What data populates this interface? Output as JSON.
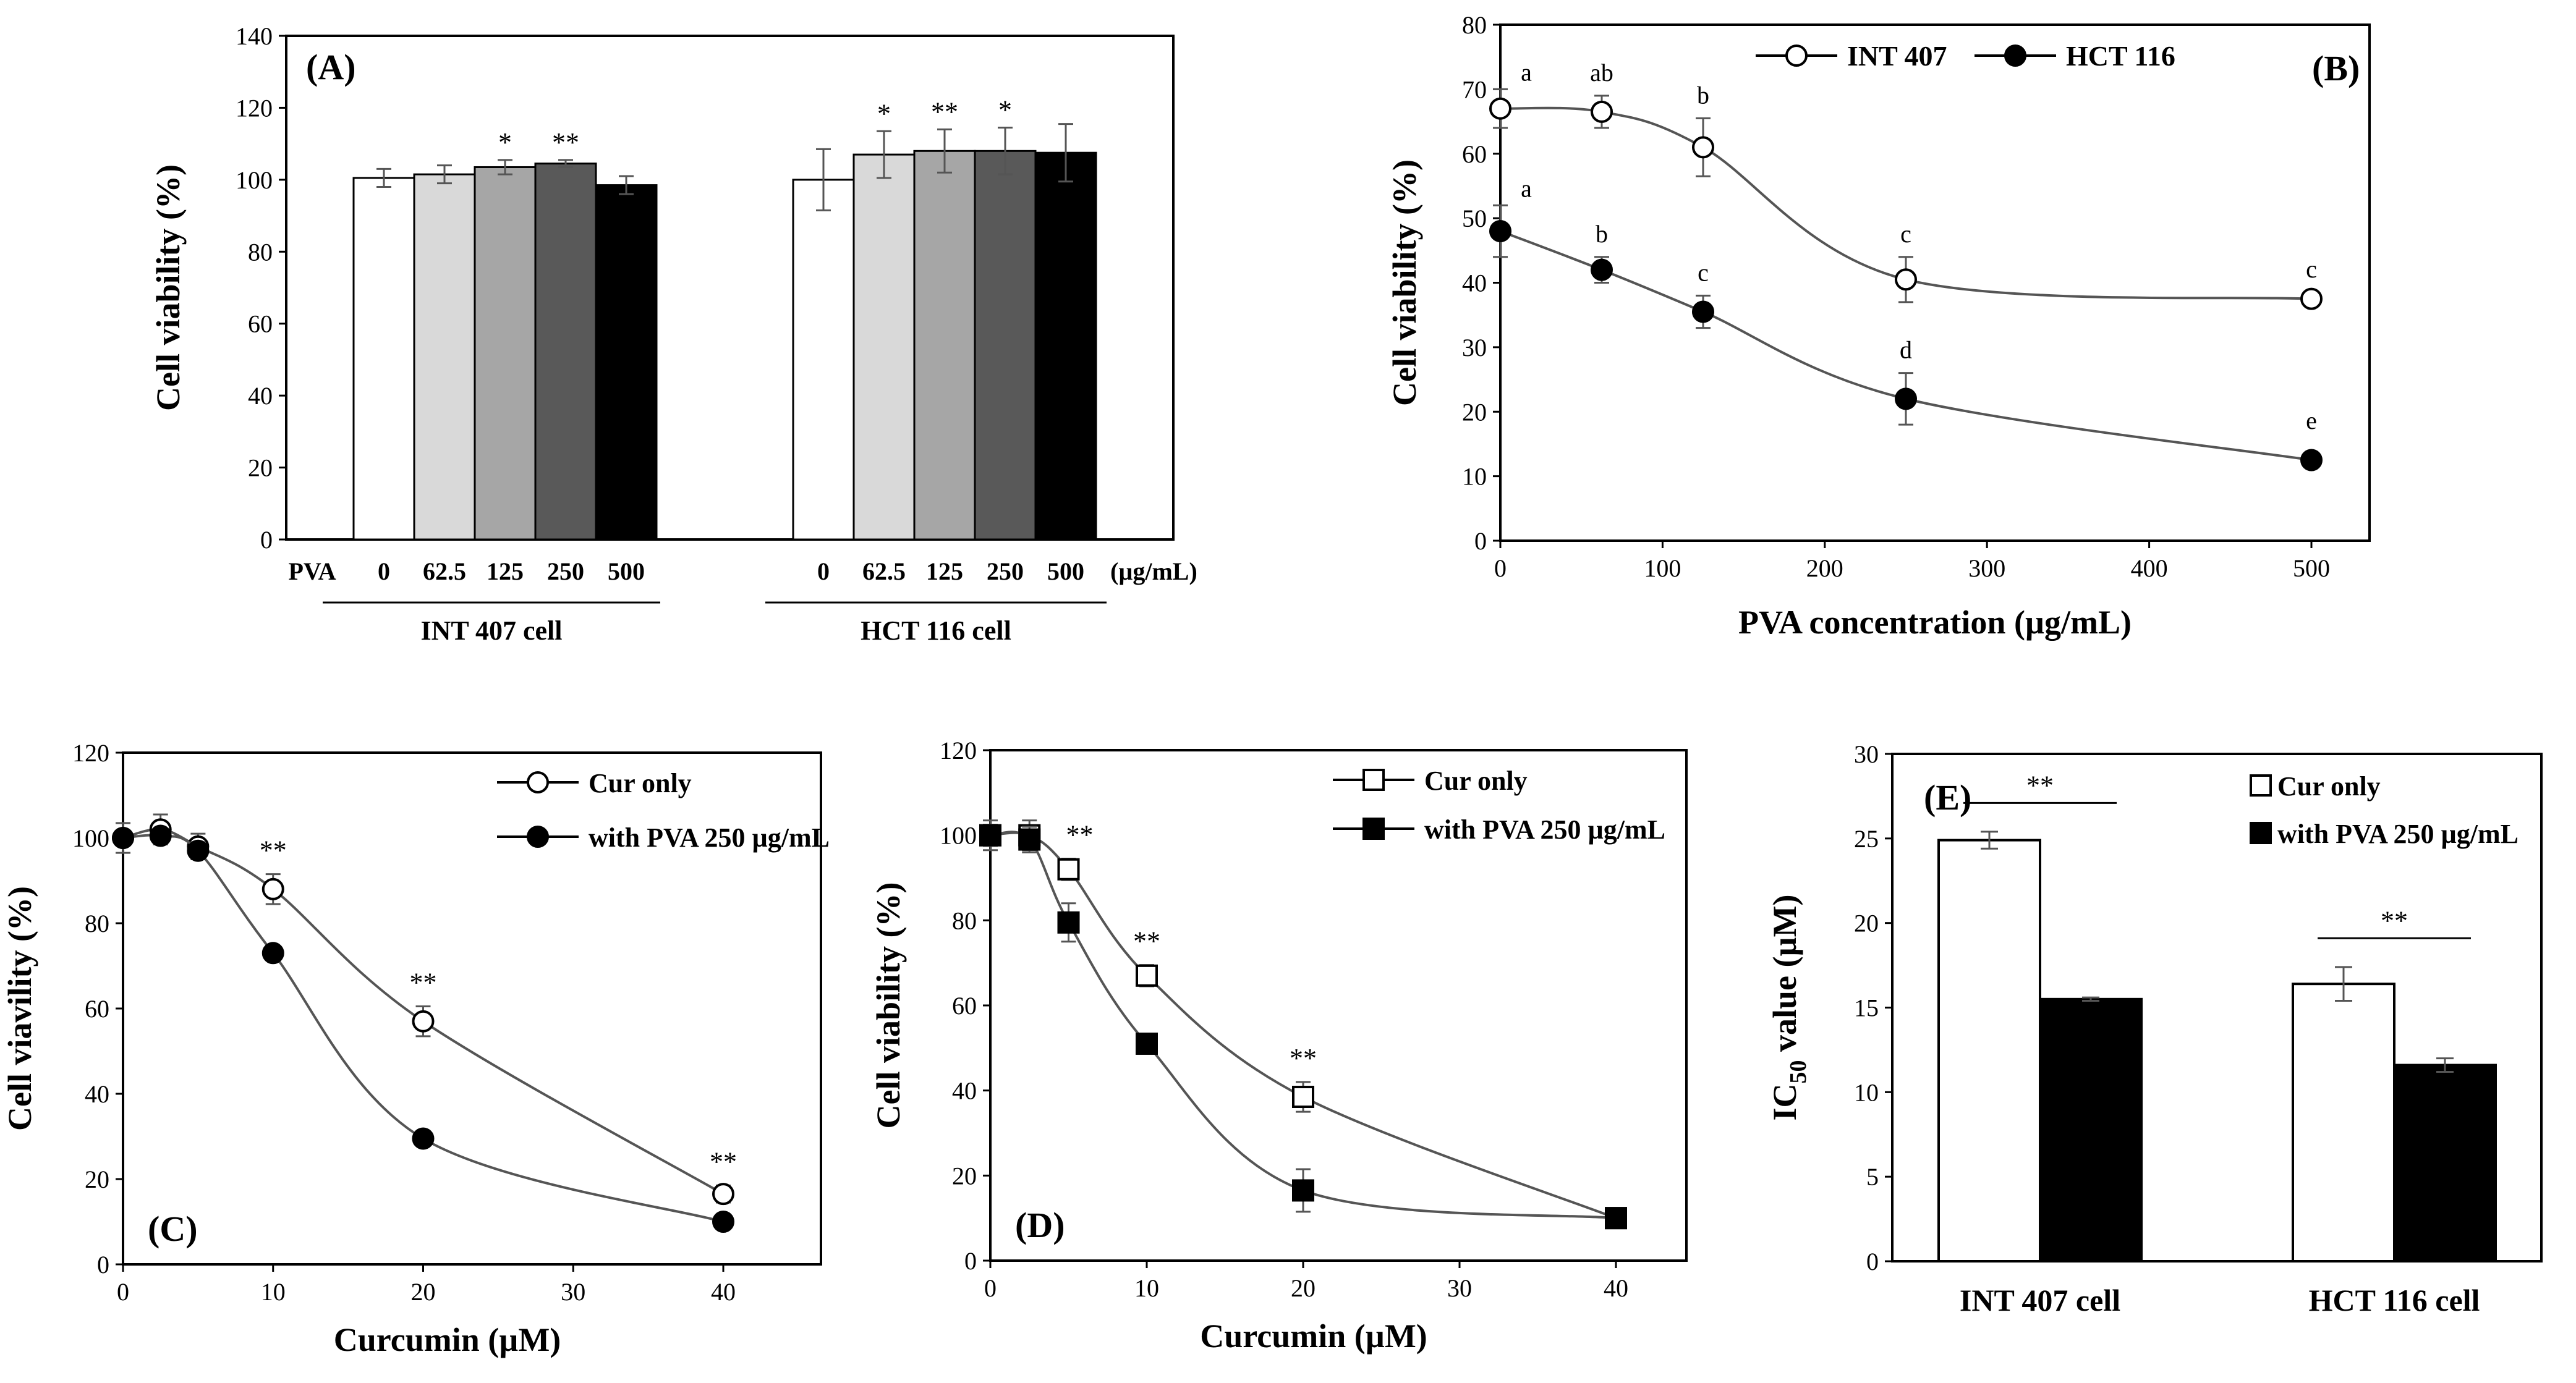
{
  "chart_data": [
    {
      "id": "A",
      "type": "bar",
      "panel_label": "(A)",
      "ylabel": "Cell viability (%)",
      "ylim": [
        0,
        140
      ],
      "yticks": [
        0,
        20,
        40,
        60,
        80,
        100,
        120,
        140
      ],
      "row_label": "PVA",
      "unit_label": "(µg/mL)",
      "colors": [
        "#ffffff",
        "#d9d9d9",
        "#a6a6a6",
        "#595959",
        "#000000"
      ],
      "groups": [
        {
          "name": "INT 407 cell",
          "categories": [
            "0",
            "62.5",
            "125",
            "250",
            "500"
          ],
          "values": [
            100.5,
            101.5,
            103.5,
            104.5,
            98.5
          ],
          "errors": [
            2.5,
            2.5,
            2.0,
            1.0,
            2.5
          ],
          "sig": [
            "",
            "",
            "*",
            "**",
            ""
          ]
        },
        {
          "name": "HCT 116 cell",
          "categories": [
            "0",
            "62.5",
            "125",
            "250",
            "500"
          ],
          "values": [
            100,
            107,
            108,
            108,
            107.5
          ],
          "errors": [
            8.5,
            6.5,
            6.0,
            6.5,
            8.0
          ],
          "sig": [
            "",
            "*",
            "**",
            "*",
            ""
          ]
        }
      ]
    },
    {
      "id": "B",
      "type": "line",
      "panel_label": "(B)",
      "xlabel": "PVA concentration (µg/mL)",
      "ylabel": "Cell viability (%)",
      "xlim": [
        0,
        520
      ],
      "ylim": [
        0,
        80
      ],
      "xticks": [
        0,
        100,
        200,
        300,
        400,
        500
      ],
      "yticks": [
        0,
        10,
        20,
        30,
        40,
        50,
        60,
        70,
        80
      ],
      "series": [
        {
          "name": "INT 407",
          "marker": "circle-open",
          "x": [
            0,
            62.5,
            125,
            250,
            500
          ],
          "y": [
            67,
            66.5,
            61,
            40.5,
            37.5
          ],
          "errors": [
            3.0,
            2.5,
            4.5,
            3.5,
            1.0
          ],
          "letters": [
            "a",
            "ab",
            "b",
            "c",
            "c"
          ]
        },
        {
          "name": "HCT 116",
          "marker": "circle-filled",
          "x": [
            0,
            62.5,
            125,
            250,
            500
          ],
          "y": [
            48,
            42,
            35.5,
            22,
            12.5
          ],
          "errors": [
            4.0,
            2.0,
            2.5,
            4.0,
            0.8
          ],
          "letters": [
            "a",
            "b",
            "c",
            "d",
            "e"
          ]
        }
      ]
    },
    {
      "id": "C",
      "type": "line",
      "panel_label": "(C)",
      "xlabel": "Curcumin (µM)",
      "ylabel": "Cell viavility (%)",
      "xlim": [
        0,
        45
      ],
      "ylim": [
        0,
        120
      ],
      "xticks": [
        0,
        10,
        20,
        30,
        40
      ],
      "yticks": [
        0,
        20,
        40,
        60,
        80,
        100,
        120
      ],
      "series": [
        {
          "name": "Cur only",
          "marker": "circle-open",
          "x": [
            0,
            2.5,
            5,
            10,
            20,
            40
          ],
          "y": [
            100,
            102,
            98,
            88,
            57,
            16.5
          ],
          "errors": [
            3.5,
            3.5,
            3.0,
            3.5,
            3.5,
            2.0
          ],
          "sig": [
            "",
            "",
            "",
            "**",
            "**",
            "**"
          ]
        },
        {
          "name": "with PVA 250 µg/mL",
          "marker": "circle-filled",
          "x": [
            0,
            2.5,
            5,
            10,
            20,
            40
          ],
          "y": [
            100,
            100.5,
            97,
            73,
            29.5,
            10
          ],
          "errors": [
            1.5,
            1.5,
            2.0,
            1.0,
            1.0,
            0.5
          ]
        }
      ]
    },
    {
      "id": "D",
      "type": "line",
      "panel_label": "(D)",
      "xlabel": "Curcumin (µM)",
      "ylabel": "Cell viability (%)",
      "xlim": [
        0,
        45
      ],
      "ylim": [
        0,
        120
      ],
      "xticks": [
        0,
        10,
        20,
        30,
        40
      ],
      "yticks": [
        0,
        20,
        40,
        60,
        80,
        100,
        120
      ],
      "series": [
        {
          "name": "Cur only",
          "marker": "square-open",
          "x": [
            0,
            2.5,
            5,
            10,
            20,
            40
          ],
          "y": [
            100,
            100,
            92,
            67,
            38.5,
            10
          ],
          "errors": [
            3.5,
            3.5,
            2.5,
            2.5,
            3.5,
            0.5
          ],
          "sig": [
            "",
            "",
            "**",
            "**",
            "**",
            ""
          ]
        },
        {
          "name": "with PVA 250 µg/mL",
          "marker": "square-filled",
          "x": [
            0,
            2.5,
            5,
            10,
            20,
            40
          ],
          "y": [
            100,
            99,
            79.5,
            51,
            16.5,
            10
          ],
          "errors": [
            2.5,
            3.0,
            4.5,
            2.0,
            5.0,
            0.5
          ]
        }
      ]
    },
    {
      "id": "E",
      "type": "bar",
      "panel_label": "(E)",
      "ylabel_main": "IC",
      "ylabel_sub": "50",
      "ylabel_rest": " value (µM)",
      "ylim": [
        0,
        30
      ],
      "yticks": [
        0,
        5,
        10,
        15,
        20,
        25,
        30
      ],
      "categories": [
        "INT 407 cell",
        "HCT 116 cell"
      ],
      "series": [
        {
          "name": "Cur only",
          "color": "#ffffff",
          "values": [
            24.9,
            16.4
          ],
          "errors": [
            0.5,
            1.0
          ]
        },
        {
          "name": "with PVA 250 µg/mL",
          "color": "#000000",
          "values": [
            15.5,
            11.6
          ],
          "errors": [
            0.1,
            0.4
          ]
        }
      ],
      "sig": [
        "**",
        "**"
      ]
    }
  ]
}
